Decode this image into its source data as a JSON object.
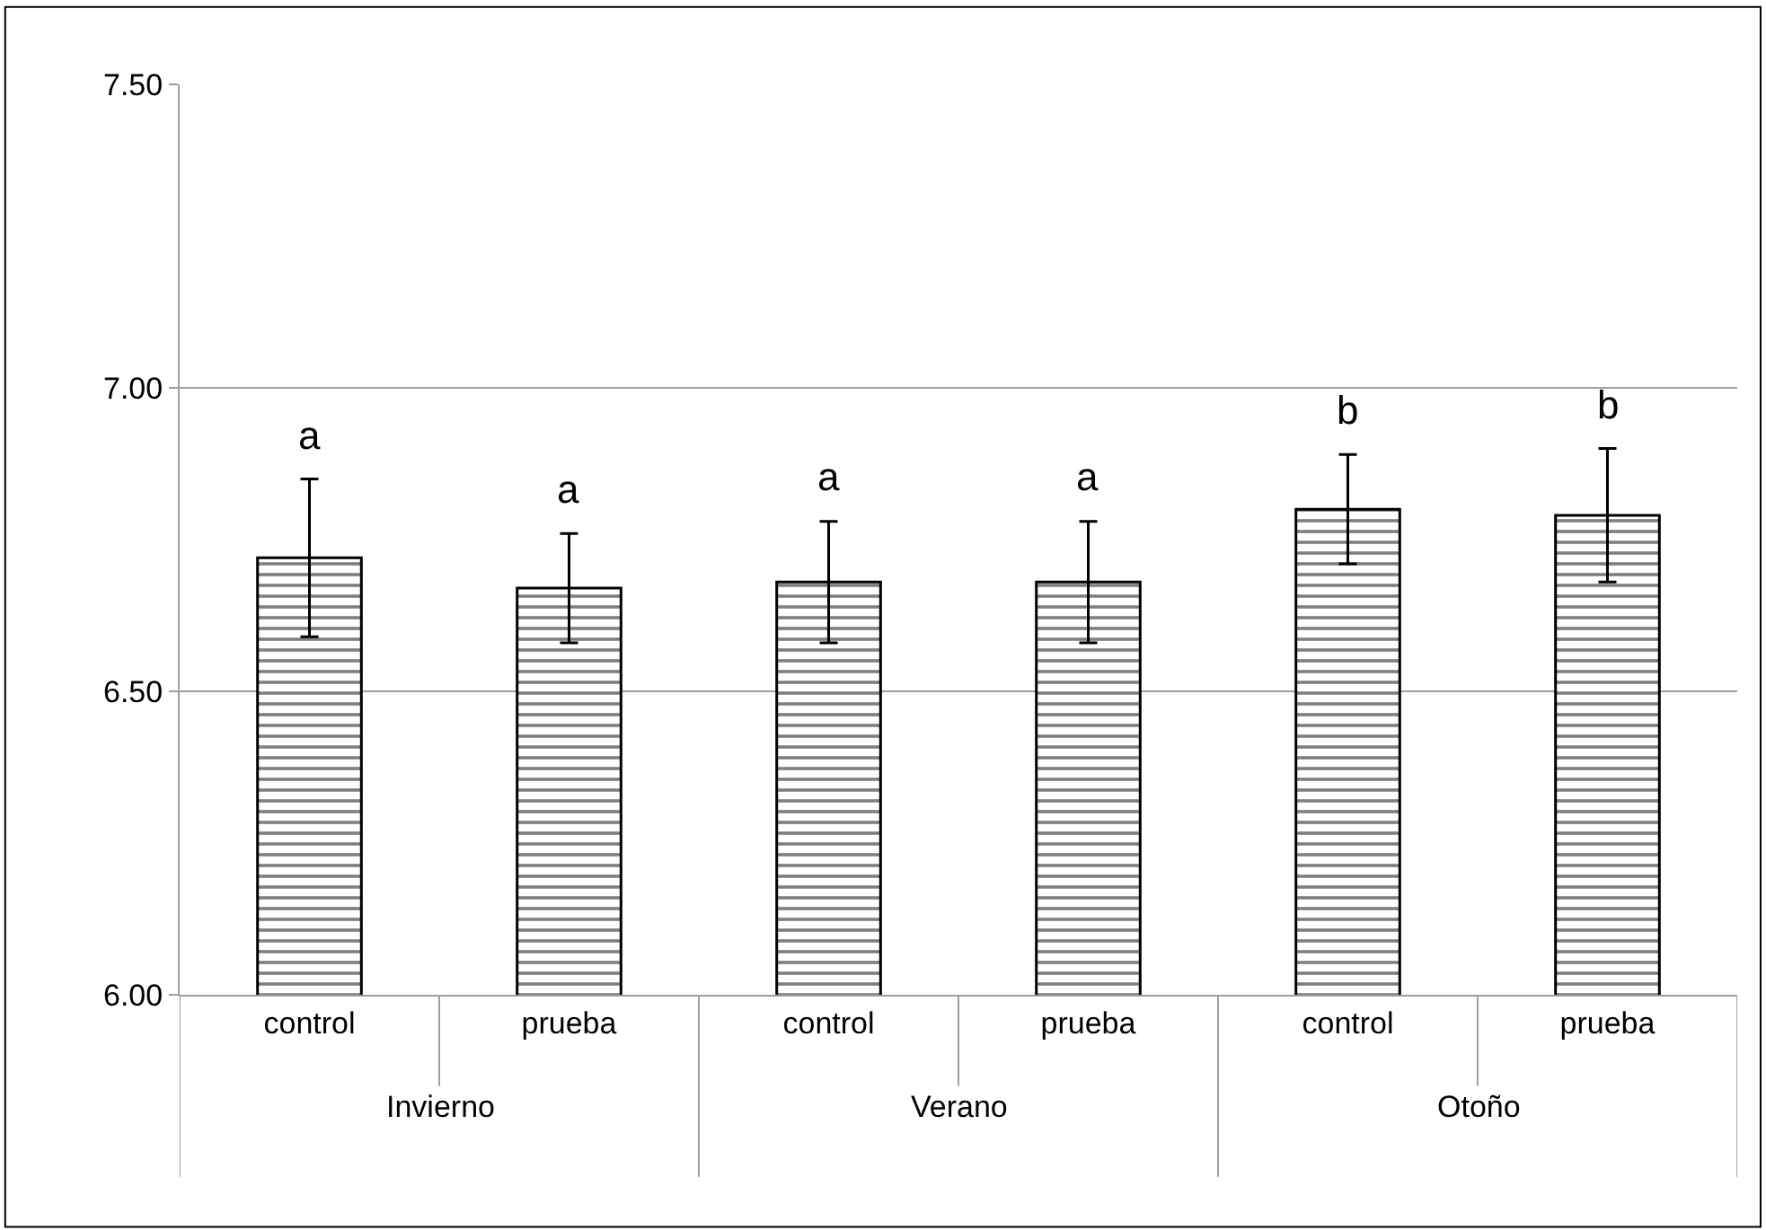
{
  "chart_data": {
    "type": "bar",
    "categories": [
      "control",
      "prueba",
      "control",
      "prueba",
      "control",
      "prueba"
    ],
    "values": [
      6.72,
      6.67,
      6.68,
      6.68,
      6.8,
      6.79
    ],
    "color": "#000000",
    "errors": [
      0.13,
      0.09,
      0.1,
      0.1,
      0.09,
      0.11
    ],
    "ylim": [
      6.0,
      7.5
    ],
    "yticks": [
      {
        "value": 6.0,
        "label": "6.00"
      },
      {
        "value": 6.5,
        "label": "6.50"
      },
      {
        "value": 7.0,
        "label": "7.00"
      },
      {
        "value": 7.5,
        "label": "7.50"
      }
    ],
    "grid": "y",
    "annotations": [
      "a",
      "a",
      "a",
      "a",
      "b",
      "b",
      "Invierno",
      "Verano",
      "Otoño"
    ]
  }
}
